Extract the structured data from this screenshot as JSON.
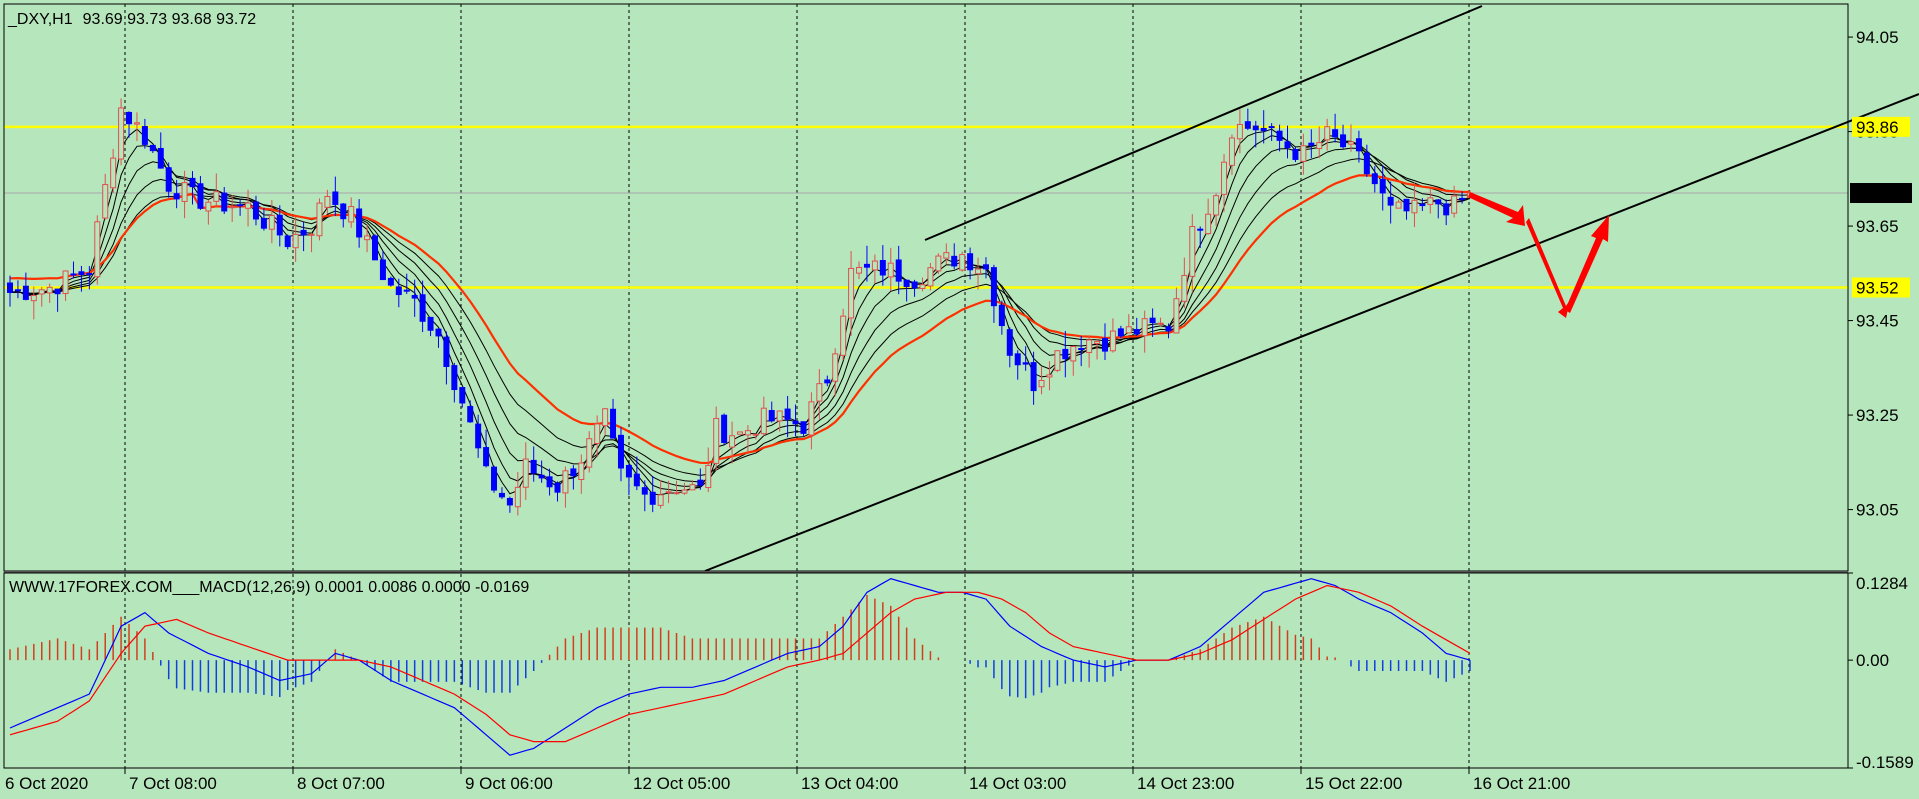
{
  "header": {
    "symbol": "_DXY,H1",
    "ohlc": "93.69 93.73 93.68 93.72"
  },
  "indicator": {
    "label": "WWW.17FOREX.COM___MACD(12,26,9) 0.0001 0.0086 0.0000 -0.0169"
  },
  "colors": {
    "background": "#b6e6bb",
    "bull_candle": "#e05050",
    "bear_candle": "#0000ff",
    "ma_slow": "#ff3000",
    "ma_fast": "#000000",
    "level_line": "#ffff00",
    "channel": "#000000",
    "arrow": "#ff0000",
    "macd_line": "#0000ff",
    "signal_line": "#ff0000"
  },
  "chart_data": {
    "type": "candlestick",
    "timeframe": "H1",
    "price_axis": {
      "range": [
        92.92,
        94.12
      ],
      "ticks": [
        "94.05",
        "93.85",
        "93.65",
        "93.45",
        "93.25",
        "93.05"
      ],
      "current_price": "93.72",
      "level_labels": [
        "93.86",
        "93.52"
      ]
    },
    "levels": [
      93.86,
      93.52
    ],
    "time_axis": {
      "labels": [
        "6 Oct 2020",
        "7 Oct 08:00",
        "8 Oct 07:00",
        "9 Oct 06:00",
        "12 Oct 05:00",
        "13 Oct 04:00",
        "14 Oct 03:00",
        "14 Oct 23:00",
        "15 Oct 22:00",
        "16 Oct 21:00"
      ]
    },
    "close_path": [
      [
        0,
        93.51
      ],
      [
        5,
        93.52
      ],
      [
        10,
        93.56
      ],
      [
        12,
        93.73
      ],
      [
        14,
        93.9
      ],
      [
        17,
        93.84
      ],
      [
        20,
        93.74
      ],
      [
        23,
        93.71
      ],
      [
        26,
        93.7
      ],
      [
        30,
        93.69
      ],
      [
        35,
        93.62
      ],
      [
        38,
        93.65
      ],
      [
        40,
        93.72
      ],
      [
        43,
        93.67
      ],
      [
        45,
        93.61
      ],
      [
        48,
        93.52
      ],
      [
        51,
        93.49
      ],
      [
        54,
        93.42
      ],
      [
        57,
        93.28
      ],
      [
        60,
        93.12
      ],
      [
        63,
        93.06
      ],
      [
        65,
        93.14
      ],
      [
        67,
        93.12
      ],
      [
        69,
        93.1
      ],
      [
        72,
        93.16
      ],
      [
        75,
        93.24
      ],
      [
        77,
        93.12
      ],
      [
        80,
        93.08
      ],
      [
        84,
        93.1
      ],
      [
        87,
        93.09
      ],
      [
        89,
        93.22
      ],
      [
        92,
        93.21
      ],
      [
        95,
        93.24
      ],
      [
        97,
        93.24
      ],
      [
        100,
        93.23
      ],
      [
        103,
        93.33
      ],
      [
        106,
        93.55
      ],
      [
        110,
        93.56
      ],
      [
        114,
        93.54
      ],
      [
        117,
        93.57
      ],
      [
        120,
        93.59
      ],
      [
        123,
        93.56
      ],
      [
        126,
        93.39
      ],
      [
        129,
        93.32
      ],
      [
        132,
        93.38
      ],
      [
        135,
        93.41
      ],
      [
        138,
        93.41
      ],
      [
        142,
        93.43
      ],
      [
        146,
        93.44
      ],
      [
        149,
        93.63
      ],
      [
        152,
        93.73
      ],
      [
        154,
        93.86
      ],
      [
        157,
        93.86
      ],
      [
        160,
        93.83
      ],
      [
        163,
        93.8
      ],
      [
        166,
        93.84
      ],
      [
        168,
        93.82
      ],
      [
        170,
        93.79
      ],
      [
        172,
        93.74
      ],
      [
        174,
        93.68
      ],
      [
        177,
        93.68
      ],
      [
        180,
        93.7
      ],
      [
        182,
        93.69
      ],
      [
        184,
        93.72
      ]
    ],
    "macd": {
      "range": [
        -0.1589,
        0.1284
      ],
      "ticks": [
        "0.1284",
        "0.00",
        "-0.1589"
      ],
      "line": [
        [
          0,
          -0.1
        ],
        [
          6,
          -0.07
        ],
        [
          10,
          -0.05
        ],
        [
          14,
          0.05
        ],
        [
          17,
          0.07
        ],
        [
          20,
          0.04
        ],
        [
          25,
          0.01
        ],
        [
          30,
          -0.01
        ],
        [
          34,
          -0.03
        ],
        [
          38,
          -0.02
        ],
        [
          41,
          0.01
        ],
        [
          44,
          0.0
        ],
        [
          48,
          -0.03
        ],
        [
          52,
          -0.05
        ],
        [
          56,
          -0.07
        ],
        [
          60,
          -0.11
        ],
        [
          63,
          -0.14
        ],
        [
          66,
          -0.13
        ],
        [
          70,
          -0.1
        ],
        [
          74,
          -0.07
        ],
        [
          78,
          -0.05
        ],
        [
          82,
          -0.04
        ],
        [
          86,
          -0.04
        ],
        [
          90,
          -0.03
        ],
        [
          94,
          -0.01
        ],
        [
          98,
          0.01
        ],
        [
          102,
          0.02
        ],
        [
          105,
          0.05
        ],
        [
          108,
          0.1
        ],
        [
          111,
          0.12
        ],
        [
          114,
          0.11
        ],
        [
          117,
          0.1
        ],
        [
          120,
          0.1
        ],
        [
          123,
          0.09
        ],
        [
          126,
          0.05
        ],
        [
          130,
          0.02
        ],
        [
          134,
          0.0
        ],
        [
          138,
          -0.01
        ],
        [
          142,
          0.0
        ],
        [
          146,
          0.0
        ],
        [
          150,
          0.02
        ],
        [
          154,
          0.06
        ],
        [
          158,
          0.1
        ],
        [
          161,
          0.11
        ],
        [
          164,
          0.12
        ],
        [
          167,
          0.11
        ],
        [
          170,
          0.09
        ],
        [
          174,
          0.07
        ],
        [
          178,
          0.04
        ],
        [
          181,
          0.01
        ],
        [
          184,
          0.0
        ]
      ],
      "signal": [
        [
          0,
          -0.11
        ],
        [
          6,
          -0.09
        ],
        [
          10,
          -0.06
        ],
        [
          14,
          0.01
        ],
        [
          17,
          0.05
        ],
        [
          21,
          0.06
        ],
        [
          25,
          0.04
        ],
        [
          30,
          0.02
        ],
        [
          35,
          0.0
        ],
        [
          40,
          0.0
        ],
        [
          44,
          0.0
        ],
        [
          48,
          -0.01
        ],
        [
          52,
          -0.03
        ],
        [
          56,
          -0.05
        ],
        [
          60,
          -0.08
        ],
        [
          63,
          -0.11
        ],
        [
          66,
          -0.12
        ],
        [
          70,
          -0.12
        ],
        [
          74,
          -0.1
        ],
        [
          78,
          -0.08
        ],
        [
          82,
          -0.07
        ],
        [
          86,
          -0.06
        ],
        [
          90,
          -0.05
        ],
        [
          94,
          -0.03
        ],
        [
          98,
          -0.01
        ],
        [
          102,
          0.0
        ],
        [
          105,
          0.01
        ],
        [
          108,
          0.04
        ],
        [
          111,
          0.07
        ],
        [
          114,
          0.09
        ],
        [
          118,
          0.1
        ],
        [
          122,
          0.1
        ],
        [
          125,
          0.09
        ],
        [
          128,
          0.07
        ],
        [
          131,
          0.04
        ],
        [
          134,
          0.02
        ],
        [
          138,
          0.01
        ],
        [
          142,
          0.0
        ],
        [
          146,
          0.0
        ],
        [
          150,
          0.01
        ],
        [
          154,
          0.03
        ],
        [
          158,
          0.06
        ],
        [
          162,
          0.09
        ],
        [
          166,
          0.11
        ],
        [
          170,
          0.1
        ],
        [
          174,
          0.08
        ],
        [
          178,
          0.05
        ],
        [
          181,
          0.03
        ],
        [
          184,
          0.01
        ]
      ]
    }
  }
}
